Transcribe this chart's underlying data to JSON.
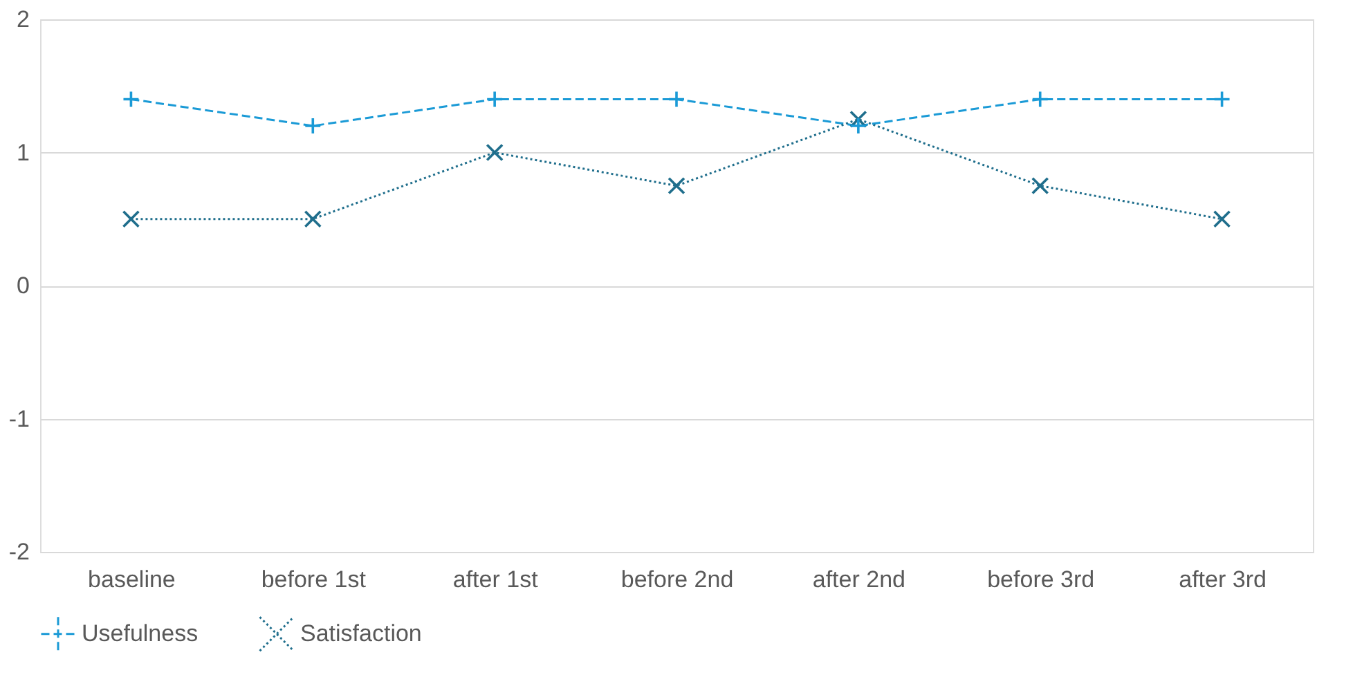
{
  "chart_data": {
    "type": "line",
    "categories": [
      "baseline",
      "before 1st",
      "after 1st",
      "before 2nd",
      "after 2nd",
      "before 3rd",
      "after 3rd"
    ],
    "series": [
      {
        "name": "Usefulness",
        "color": "#1a9ad6",
        "line_style": "dashed",
        "marker": "plus",
        "values": [
          1.4,
          1.2,
          1.4,
          1.4,
          1.2,
          1.4,
          1.4
        ]
      },
      {
        "name": "Satisfaction",
        "color": "#1f6e8c",
        "line_style": "dotted",
        "marker": "cross",
        "values": [
          0.5,
          0.5,
          1.0,
          0.75,
          1.25,
          0.75,
          0.5
        ]
      }
    ],
    "ylim": [
      -2,
      2
    ],
    "yticks": [
      -2,
      -1,
      0,
      1,
      2
    ],
    "grid": "y",
    "legend": "bottom"
  }
}
